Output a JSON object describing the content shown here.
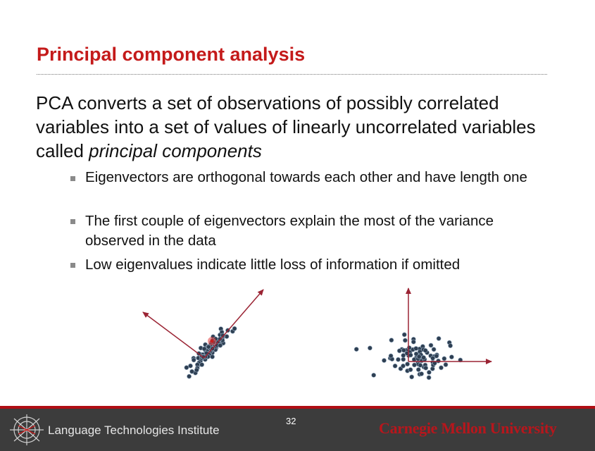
{
  "slide": {
    "title": "Principal component analysis",
    "intro": {
      "text_before": "PCA converts a set of observations of possibly correlated variables into a set of values of linearly uncorrelated variables called ",
      "emphasis": "principal components"
    },
    "bullets": [
      "Eigenvectors are orthogonal towards each other and have length one",
      "The first couple of eigenvectors explain the most of the variance observed in the data",
      "Low eigenvalues indicate little loss of information if omitted"
    ]
  },
  "figure": {
    "point_color": "#2e3f52",
    "arrow_color": "#9b2434",
    "cursor_color": "#e04040"
  },
  "footer": {
    "institute": "Language Technologies Institute",
    "page_number": "32",
    "university": "Carnegie Mellon University",
    "bar_color": "#3c3c3c",
    "accent_color": "#b00e14"
  }
}
